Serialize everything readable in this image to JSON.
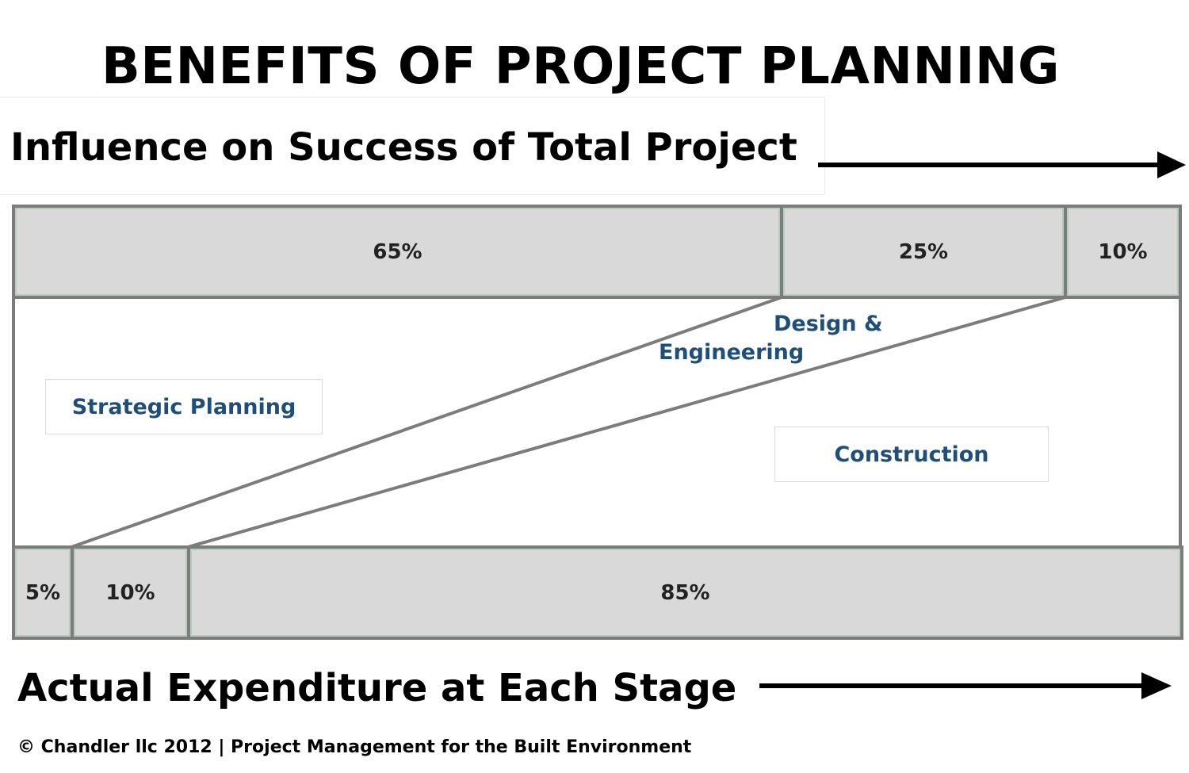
{
  "title": "BENEFITS OF PROJECT PLANNING",
  "influence": {
    "heading": "Influence on Success of Total Project",
    "segments": [
      {
        "label": "65%",
        "value": 65
      },
      {
        "label": "25%",
        "value": 25
      },
      {
        "label": "10%",
        "value": 10
      }
    ]
  },
  "stages": {
    "strategic": "Strategic Planning",
    "design_line1": "Design &",
    "design_line2": "Engineering",
    "construction": "Construction"
  },
  "expenditure": {
    "heading": "Actual Expenditure at Each Stage",
    "segments": [
      {
        "label": "5%",
        "value": 5
      },
      {
        "label": "10%",
        "value": 10
      },
      {
        "label": "85%",
        "value": 85
      }
    ]
  },
  "footer": {
    "copyright": "© Chandler llc 2012 | Project Management for the Built Environment"
  },
  "colors": {
    "bar_fill": "#d9d9d9",
    "bar_border": "#7c7c7c",
    "stage_text": "#1f4e79"
  }
}
